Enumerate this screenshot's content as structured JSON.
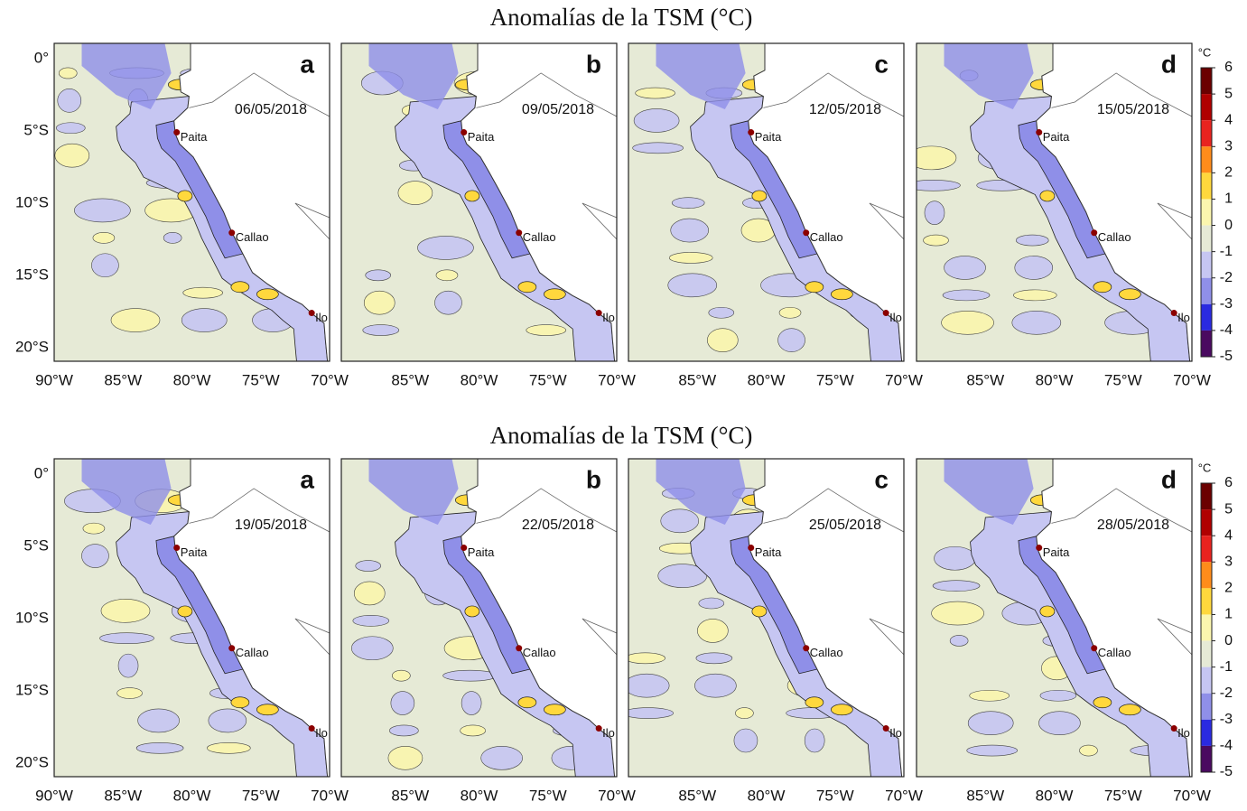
{
  "rows": [
    {
      "title": "Anomalías de la TSM (°C)",
      "panels": [
        {
          "letter": "a",
          "date": "06/05/2018"
        },
        {
          "letter": "b",
          "date": "09/05/2018"
        },
        {
          "letter": "c",
          "date": "12/05/2018"
        },
        {
          "letter": "d",
          "date": "15/05/2018"
        }
      ]
    },
    {
      "title": "Anomalías de la TSM (°C)",
      "panels": [
        {
          "letter": "a",
          "date": "19/05/2018"
        },
        {
          "letter": "b",
          "date": "22/05/2018"
        },
        {
          "letter": "c",
          "date": "25/05/2018"
        },
        {
          "letter": "d",
          "date": "28/05/2018"
        }
      ]
    }
  ],
  "cities": [
    "Paita",
    "Callao",
    "Ilo"
  ],
  "y_axis_labels": [
    "0°",
    "5°S",
    "10°S",
    "15°S",
    "20°S"
  ],
  "x_axis_labels": [
    "90°W",
    "85°W",
    "80°W",
    "75°W",
    "70°W"
  ],
  "colorbar": {
    "unit": "°C",
    "ticks": [
      6,
      5,
      4,
      3,
      2,
      1,
      0,
      -1,
      -2,
      -3,
      -4,
      -5
    ],
    "colors": [
      "#6b0000",
      "#b00000",
      "#e8231f",
      "#ff8c1a",
      "#ffd83d",
      "#fbf6ae",
      "#e6ead6",
      "#c6c6f2",
      "#8f8fe8",
      "#2a2ae0",
      "#4a0a60"
    ]
  }
}
